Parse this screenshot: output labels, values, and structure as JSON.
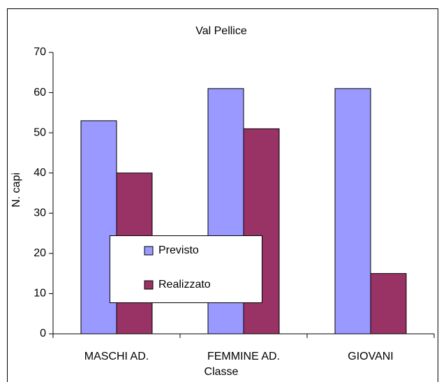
{
  "chart_data": {
    "type": "bar",
    "title": "Val Pellice",
    "x_label": "Classe",
    "y_label": "N. capi",
    "categories": [
      "MASCHI AD.",
      "FEMMINE AD.",
      "GIOVANI"
    ],
    "series": [
      {
        "name": "Previsto",
        "color": "#9999ff",
        "values": [
          53,
          61,
          61
        ]
      },
      {
        "name": "Realizzato",
        "color": "#993366",
        "values": [
          40,
          51,
          15
        ]
      }
    ],
    "ylim": [
      0,
      70
    ],
    "yticks": [
      0,
      10,
      20,
      30,
      40,
      50,
      60,
      70
    ],
    "grid": false,
    "legend": "lower-left"
  }
}
